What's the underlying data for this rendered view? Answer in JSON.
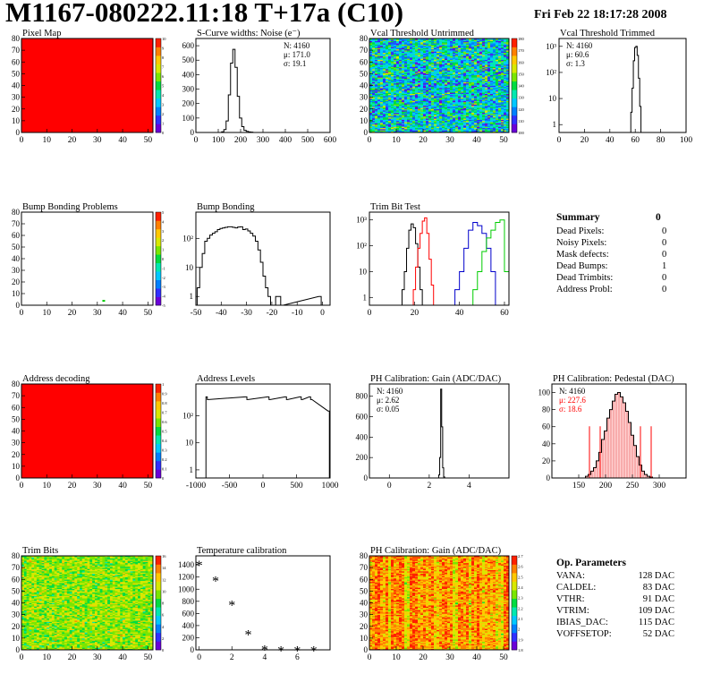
{
  "header": {
    "title": "M1167-080222.11:18 T+17a (C10)",
    "date": "Fri Feb 22 18:17:28 2008"
  },
  "colors": {
    "frame": "#000000",
    "hist_black": "#000000",
    "hist_red": "#ff0000",
    "hist_blue": "#0000cc",
    "hist_green": "#00cc00",
    "map_red": "#ff0000"
  },
  "summary": {
    "title": "Summary",
    "total": "0",
    "rows": [
      {
        "label": "Dead Pixels:",
        "value": "0"
      },
      {
        "label": "Noisy Pixels:",
        "value": "0"
      },
      {
        "label": "Mask defects:",
        "value": "0"
      },
      {
        "label": "Dead Bumps:",
        "value": "1"
      },
      {
        "label": "Dead Trimbits:",
        "value": "0"
      },
      {
        "label": "Address Probl:",
        "value": "0"
      }
    ]
  },
  "op_params": {
    "title": "Op. Parameters",
    "rows": [
      {
        "label": "VANA:",
        "value": "128 DAC"
      },
      {
        "label": "CALDEL:",
        "value": "83 DAC"
      },
      {
        "label": "VTHR:",
        "value": "91 DAC"
      },
      {
        "label": "VTRIM:",
        "value": "109 DAC"
      },
      {
        "label": "IBIAS_DAC:",
        "value": "115 DAC"
      },
      {
        "label": "VOFFSETOP:",
        "value": "52 DAC"
      }
    ]
  },
  "chart_data": [
    {
      "id": "pixel-map",
      "type": "heatmap",
      "title": "Pixel Map",
      "xlim": [
        0,
        52
      ],
      "ylim": [
        0,
        80
      ],
      "xticks": [
        0,
        10,
        20,
        30,
        40,
        50
      ],
      "yticks": [
        0,
        10,
        20,
        30,
        40,
        50,
        60,
        70,
        80
      ],
      "fill": "uniform",
      "uniform_color": "#ff0000",
      "zlabels": [
        "0",
        "1",
        "2",
        "3",
        "4",
        "5",
        "6",
        "7",
        "8",
        "9",
        "10"
      ]
    },
    {
      "id": "scurve-noise",
      "type": "bar",
      "title": "S-Curve widths: Noise (e⁻)",
      "xlim": [
        0,
        600
      ],
      "ylim": [
        0,
        650
      ],
      "xticks": [
        0,
        100,
        200,
        300,
        400,
        500,
        600
      ],
      "yticks": [
        0,
        100,
        200,
        300,
        400,
        500,
        600
      ],
      "stats": [
        {
          "text": "N: 4160"
        },
        {
          "text": "μ: 171.0"
        },
        {
          "text": "σ: 19.1"
        }
      ],
      "series": [
        {
          "color": "#000000",
          "x": [
            120,
            130,
            140,
            150,
            160,
            170,
            180,
            190,
            200,
            210,
            220,
            230,
            240,
            250
          ],
          "values": [
            5,
            20,
            80,
            260,
            480,
            575,
            450,
            250,
            100,
            40,
            15,
            8,
            4,
            2
          ]
        }
      ]
    },
    {
      "id": "vcal-untrimmed",
      "type": "heatmap",
      "title": "Vcal Threshold Untrimmed",
      "xlim": [
        0,
        52
      ],
      "ylim": [
        0,
        80
      ],
      "xticks": [
        0,
        10,
        20,
        30,
        40,
        50
      ],
      "yticks": [
        0,
        10,
        20,
        30,
        40,
        50,
        60,
        70,
        80
      ],
      "fill": "noise",
      "zlim": [
        100,
        180
      ],
      "mean": 128,
      "spread": 14,
      "zlabels": [
        "100",
        "110",
        "120",
        "130",
        "140",
        "150",
        "160",
        "170",
        "180"
      ]
    },
    {
      "id": "vcal-trimmed",
      "type": "bar",
      "title": "Vcal Threshold Trimmed",
      "log": true,
      "xlim": [
        0,
        100
      ],
      "ylim": [
        0.5,
        2000
      ],
      "xticks": [
        0,
        20,
        40,
        60,
        80,
        100
      ],
      "ylabelsLog": [
        {
          "v": 1,
          "t": "1"
        },
        {
          "v": 10,
          "t": "10"
        },
        {
          "v": 100,
          "t": "10²"
        },
        {
          "v": 1000,
          "t": "10³"
        }
      ],
      "stats": [
        {
          "text": "N: 4160"
        },
        {
          "text": "μ: 60.6"
        },
        {
          "text": "σ: 1.3"
        }
      ],
      "series": [
        {
          "color": "#000000",
          "x": [
            57,
            58,
            59,
            60,
            61,
            62,
            63,
            64
          ],
          "values": [
            3,
            25,
            280,
            900,
            1000,
            450,
            60,
            5
          ]
        }
      ]
    },
    {
      "id": "bump-problems",
      "type": "heatmap",
      "title": "Bump Bonding Problems",
      "xlim": [
        0,
        52
      ],
      "ylim": [
        0,
        80
      ],
      "xticks": [
        0,
        10,
        20,
        30,
        40,
        50
      ],
      "yticks": [
        0,
        10,
        20,
        30,
        40,
        50,
        60,
        70,
        80
      ],
      "fill": "points",
      "points": [
        {
          "x": 32,
          "y": 3,
          "color": "#00cc00"
        }
      ],
      "zlabels": [
        "-5",
        "-4",
        "-3",
        "-2",
        "-1",
        "0",
        "1",
        "2",
        "3",
        "4",
        "5"
      ]
    },
    {
      "id": "bump-bonding",
      "type": "bar",
      "title": "Bump Bonding",
      "log": true,
      "xlim": [
        -50,
        3
      ],
      "ylim": [
        0.5,
        800
      ],
      "xticks": [
        -50,
        -40,
        -30,
        -20,
        -10,
        0
      ],
      "ylabelsLog": [
        {
          "v": 1,
          "t": "1"
        },
        {
          "v": 10,
          "t": "10"
        },
        {
          "v": 100,
          "t": "10²"
        }
      ],
      "series": [
        {
          "color": "#000000",
          "x": [
            -49,
            -48,
            -47,
            -46,
            -45,
            -44,
            -43,
            -42,
            -41,
            -40,
            -39,
            -38,
            -37,
            -36,
            -35,
            -34,
            -33,
            -32,
            -31,
            -30,
            -29,
            -28,
            -27,
            -26,
            -25,
            -24,
            -23,
            -22,
            -21,
            -20,
            -19,
            -18,
            -17,
            -16,
            -1,
            0
          ],
          "values": [
            2,
            10,
            30,
            80,
            100,
            130,
            150,
            170,
            200,
            220,
            230,
            240,
            250,
            250,
            240,
            230,
            245,
            250,
            200,
            210,
            180,
            150,
            120,
            80,
            40,
            15,
            5,
            2,
            1,
            0,
            0,
            1,
            1,
            0,
            1,
            0
          ]
        }
      ]
    },
    {
      "id": "trim-bit-test",
      "type": "bar",
      "title": "Trim Bit Test",
      "log": true,
      "xlim": [
        0,
        62
      ],
      "ylim": [
        0.5,
        2000
      ],
      "xticks": [
        0,
        20,
        40,
        60
      ],
      "ylabelsLog": [
        {
          "v": 1,
          "t": "1"
        },
        {
          "v": 10,
          "t": "10"
        },
        {
          "v": 100,
          "t": "10²"
        },
        {
          "v": 1000,
          "t": "10³"
        }
      ],
      "series": [
        {
          "color": "#000000",
          "x": [
            15,
            16,
            17,
            18,
            19,
            20,
            21,
            22,
            23
          ],
          "values": [
            2,
            10,
            80,
            400,
            700,
            500,
            120,
            15,
            2
          ]
        },
        {
          "color": "#ff0000",
          "x": [
            20,
            21,
            22,
            23,
            24,
            25,
            26,
            27,
            28
          ],
          "values": [
            2,
            15,
            80,
            300,
            900,
            1200,
            300,
            30,
            3
          ]
        },
        {
          "color": "#0000cc",
          "x": [
            39,
            41,
            43,
            45,
            47,
            49,
            51,
            53,
            55
          ],
          "values": [
            2,
            10,
            80,
            400,
            800,
            600,
            300,
            80,
            10
          ]
        },
        {
          "color": "#00cc00",
          "x": [
            47,
            49,
            51,
            53,
            55,
            57,
            59,
            61
          ],
          "values": [
            2,
            10,
            60,
            200,
            400,
            800,
            1000,
            10
          ]
        }
      ]
    },
    {
      "id": "address-decoding",
      "type": "heatmap",
      "title": "Address decoding",
      "xlim": [
        0,
        52
      ],
      "ylim": [
        0,
        80
      ],
      "xticks": [
        0,
        10,
        20,
        30,
        40,
        50
      ],
      "yticks": [
        0,
        10,
        20,
        30,
        40,
        50,
        60,
        70,
        80
      ],
      "fill": "uniform",
      "uniform_color": "#ff0000",
      "zlabels": [
        "0",
        "0.1",
        "0.2",
        "0.3",
        "0.4",
        "0.5",
        "0.6",
        "0.7",
        "0.8",
        "0.9",
        "1"
      ]
    },
    {
      "id": "address-levels",
      "type": "bar",
      "title": "Address Levels",
      "log": true,
      "xlim": [
        -1000,
        1000
      ],
      "ylim": [
        0.5,
        1500
      ],
      "xticks": [
        -1000,
        -500,
        0,
        500,
        1000
      ],
      "ylabelsLog": [
        {
          "v": 1,
          "t": "1"
        },
        {
          "v": 10,
          "t": "10"
        },
        {
          "v": 100,
          "t": "10²"
        }
      ],
      "series": [
        {
          "color": "#000000",
          "x": [
            -840,
            -820,
            -250,
            -230,
            80,
            100,
            340,
            360,
            560,
            580,
            700,
            720,
            980
          ],
          "values": [
            500,
            400,
            500,
            400,
            500,
            400,
            500,
            400,
            500,
            400,
            500,
            400,
            150
          ]
        }
      ]
    },
    {
      "id": "ph-gain",
      "type": "bar",
      "title": "PH Calibration: Gain (ADC/DAC)",
      "xlim": [
        -1,
        6
      ],
      "ylim": [
        0,
        920
      ],
      "xticks": [
        0,
        2,
        4
      ],
      "yticks": [
        0,
        200,
        400,
        600,
        800
      ],
      "stats": [
        {
          "text": "N: 4160"
        },
        {
          "text": "μ: 2.62"
        },
        {
          "text": "σ: 0.05"
        }
      ],
      "series": [
        {
          "color": "#000000",
          "x": [
            2.5,
            2.55,
            2.6,
            2.65,
            2.7,
            2.75
          ],
          "values": [
            30,
            200,
            870,
            500,
            100,
            10
          ]
        }
      ]
    },
    {
      "id": "ph-pedestal",
      "type": "bar",
      "title": "PH Calibration: Pedestal (DAC)",
      "xlim": [
        100,
        350
      ],
      "ylim": [
        0,
        110
      ],
      "xticks": [
        150,
        200,
        250,
        300
      ],
      "yticks": [
        0,
        20,
        40,
        60,
        80,
        100
      ],
      "stats": [
        {
          "text": "N: 4160"
        },
        {
          "text": "μ: 227.6",
          "color": "#ff0000"
        },
        {
          "text": "σ: 18.6",
          "color": "#ff0000"
        }
      ],
      "markers": [
        170,
        190,
        265,
        285
      ],
      "series": [
        {
          "color": "#000000",
          "fill": "#ffd0d0",
          "x": [
            165,
            170,
            175,
            180,
            185,
            190,
            195,
            200,
            205,
            210,
            215,
            220,
            225,
            230,
            235,
            240,
            245,
            250,
            255,
            260,
            265,
            270,
            275,
            280,
            285
          ],
          "values": [
            2,
            4,
            8,
            12,
            20,
            30,
            45,
            55,
            70,
            80,
            90,
            98,
            100,
            95,
            88,
            78,
            65,
            50,
            38,
            25,
            15,
            8,
            4,
            2,
            1
          ]
        }
      ]
    },
    {
      "id": "trim-bits",
      "type": "heatmap",
      "title": "Trim Bits",
      "xlim": [
        0,
        52
      ],
      "ylim": [
        0,
        80
      ],
      "xticks": [
        0,
        10,
        20,
        30,
        40,
        50
      ],
      "yticks": [
        0,
        10,
        20,
        30,
        40,
        50,
        60,
        70,
        80
      ],
      "fill": "noise",
      "zlim": [
        0,
        16
      ],
      "mean": 10,
      "spread": 1.4,
      "zlabels": [
        "0",
        "2",
        "4",
        "6",
        "8",
        "10",
        "12",
        "14",
        "16"
      ]
    },
    {
      "id": "temp-calibration",
      "type": "scatter",
      "title": "Temperature calibration",
      "xlim": [
        -0.2,
        8
      ],
      "ylim": [
        0,
        1550
      ],
      "xticks": [
        0,
        2,
        4,
        6
      ],
      "yticks": [
        0,
        200,
        400,
        600,
        800,
        1000,
        1200,
        1400
      ],
      "x": [
        0,
        1,
        2,
        3,
        4,
        5,
        6,
        7
      ],
      "y": [
        1420,
        1160,
        760,
        270,
        20,
        10,
        10,
        10
      ]
    },
    {
      "id": "ph-gain-map",
      "type": "heatmap",
      "title": "PH Calibration: Gain (ADC/DAC)",
      "xlim": [
        0,
        52
      ],
      "ylim": [
        0,
        80
      ],
      "xticks": [
        0,
        10,
        20,
        30,
        40,
        50
      ],
      "yticks": [
        0,
        10,
        20,
        30,
        40,
        50,
        60,
        70,
        80
      ],
      "fill": "noise",
      "zlim": [
        1.8,
        2.7
      ],
      "mean": 2.55,
      "spread": 0.08,
      "columnStripes": true,
      "zlabels": [
        "1.8",
        "1.9",
        "2",
        "2.1",
        "2.2",
        "2.3",
        "2.4",
        "2.5",
        "2.6",
        "2.7"
      ]
    }
  ]
}
